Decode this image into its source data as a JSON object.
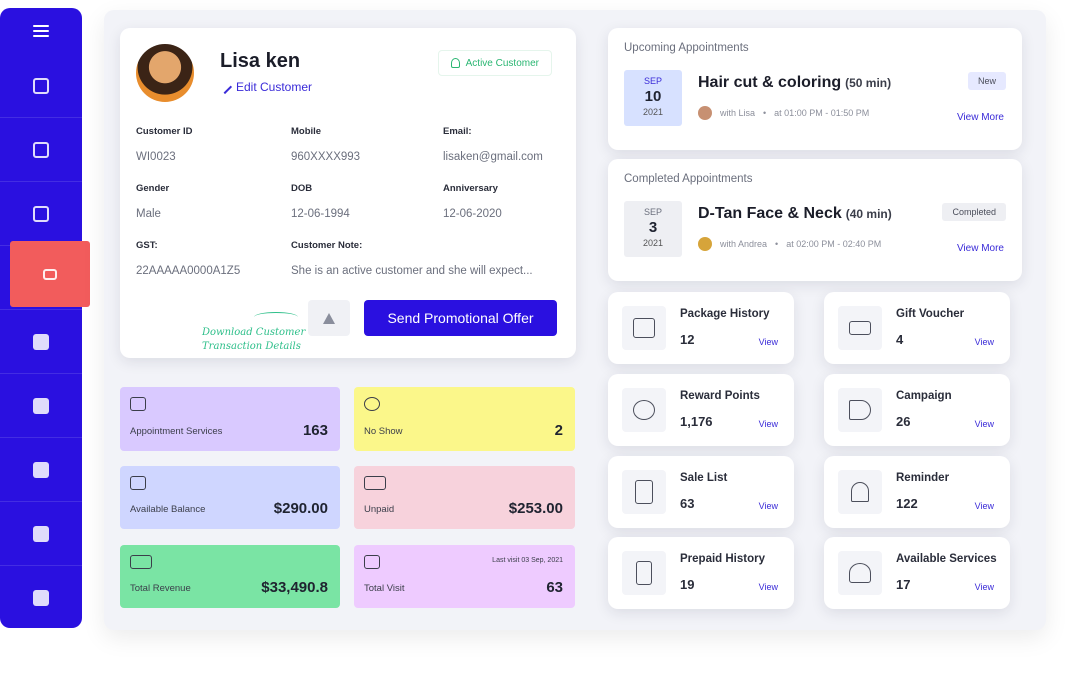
{
  "sidebar": {
    "items": [
      {
        "icon": "chart-icon"
      },
      {
        "icon": "document-icon"
      },
      {
        "icon": "calendar-icon"
      },
      {
        "icon": "customer-card-icon",
        "active": true
      },
      {
        "icon": "placeholder-icon"
      },
      {
        "icon": "placeholder-icon"
      },
      {
        "icon": "placeholder-icon"
      },
      {
        "icon": "placeholder-icon"
      },
      {
        "icon": "placeholder-icon"
      }
    ],
    "active_color": "#f25c5c",
    "bg_color": "#2a10e0"
  },
  "profile": {
    "name": "Lisa ken",
    "edit_label": "Edit Customer",
    "status_label": "Active Customer",
    "fields": {
      "customer_id_label": "Customer ID",
      "customer_id": "WI0023",
      "mobile_label": "Mobile",
      "mobile": "960XXXX993",
      "email_label": "Email:",
      "email": "lisaken@gmail.com",
      "gender_label": "Gender",
      "gender": "Male",
      "dob_label": "DOB",
      "dob": "12-06-1994",
      "anniversary_label": "Anniversary",
      "anniversary": "12-06-2020",
      "gst_label": "GST:",
      "gst": "22AAAAA0000A1Z5",
      "note_label": "Customer Note:",
      "note": "She is an active customer and she will expect..."
    },
    "download_note_line1": "Download Customer",
    "download_note_line2": "Transaction Details",
    "promo_button": "Send Promotional Offer"
  },
  "stats": [
    {
      "label": "Appointment Services",
      "value": "163",
      "color": "#d9c9ff"
    },
    {
      "label": "No Show",
      "value": "2",
      "color": "#fbf78a"
    },
    {
      "label": "Available Balance",
      "value": "$290.00",
      "color": "#cfd6ff"
    },
    {
      "label": "Unpaid",
      "value": "$253.00",
      "color": "#f7d2dc"
    },
    {
      "label": "Total Revenue",
      "value": "$33,490.8",
      "color": "#7ae4a4"
    },
    {
      "label": "Total Visit",
      "value": "63",
      "note": "Last visit 03 Sep, 2021",
      "color": "#eecbff"
    }
  ],
  "upcoming": {
    "heading": "Upcoming Appointments",
    "month": "SEP",
    "day": "10",
    "year": "2021",
    "service": "Hair cut & coloring",
    "duration": "(50 min)",
    "with": "with Lisa",
    "time": "at 01:00 PM - 01:50 PM",
    "status": "New",
    "view_more": "View More"
  },
  "completed": {
    "heading": "Completed Appointments",
    "month": "SEP",
    "day": "3",
    "year": "2021",
    "service": "D-Tan Face & Neck",
    "duration": "(40 min)",
    "with": "with Andrea",
    "time": "at 02:00 PM - 02:40 PM",
    "status": "Completed",
    "view_more": "View More"
  },
  "features": [
    {
      "name": "Package History",
      "value": "12",
      "view": "View",
      "icon": "package-icon"
    },
    {
      "name": "Gift Voucher",
      "value": "4",
      "view": "View",
      "icon": "gift-voucher-icon"
    },
    {
      "name": "Reward Points",
      "value": "1,176",
      "view": "View",
      "icon": "reward-icon"
    },
    {
      "name": "Campaign",
      "value": "26",
      "view": "View",
      "icon": "megaphone-icon"
    },
    {
      "name": "Sale List",
      "value": "63",
      "view": "View",
      "icon": "list-icon"
    },
    {
      "name": "Reminder",
      "value": "122",
      "view": "View",
      "icon": "bell-icon"
    },
    {
      "name": "Prepaid History",
      "value": "19",
      "view": "View",
      "icon": "prepaid-icon"
    },
    {
      "name": "Available Services",
      "value": "17",
      "view": "View",
      "icon": "services-icon"
    }
  ]
}
